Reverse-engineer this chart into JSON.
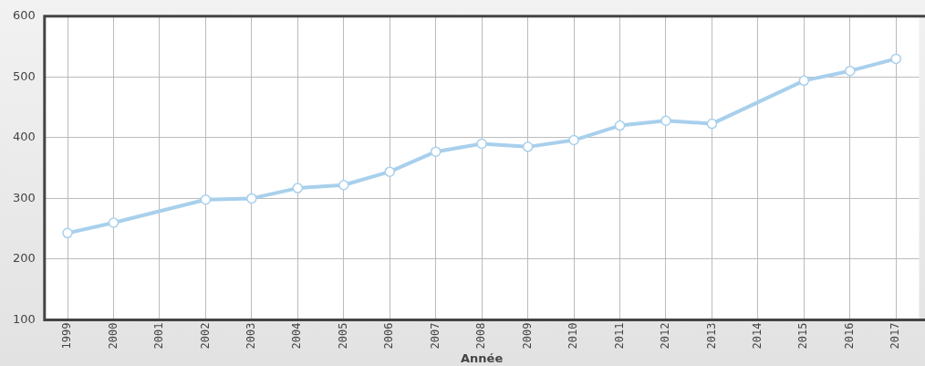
{
  "chart_data": {
    "type": "line",
    "xlabel": "Année",
    "categories": [
      "1999",
      "2000",
      "2001",
      "2002",
      "2003",
      "2004",
      "2005",
      "2006",
      "2007",
      "2008",
      "2009",
      "2010",
      "2011",
      "2012",
      "2013",
      "2014",
      "2015",
      "2016",
      "2017"
    ],
    "series": [
      {
        "color": "#a8d0ec",
        "values": [
          243,
          260,
          null,
          298,
          300,
          317,
          322,
          344,
          377,
          390,
          385,
          396,
          420,
          428,
          423,
          null,
          494,
          510,
          530
        ]
      }
    ],
    "ylim": [
      100,
      600
    ],
    "yticks": [
      100,
      200,
      300,
      400,
      500,
      600
    ],
    "grid": true,
    "legend": false,
    "marker": "circle",
    "line_style": "solid"
  }
}
